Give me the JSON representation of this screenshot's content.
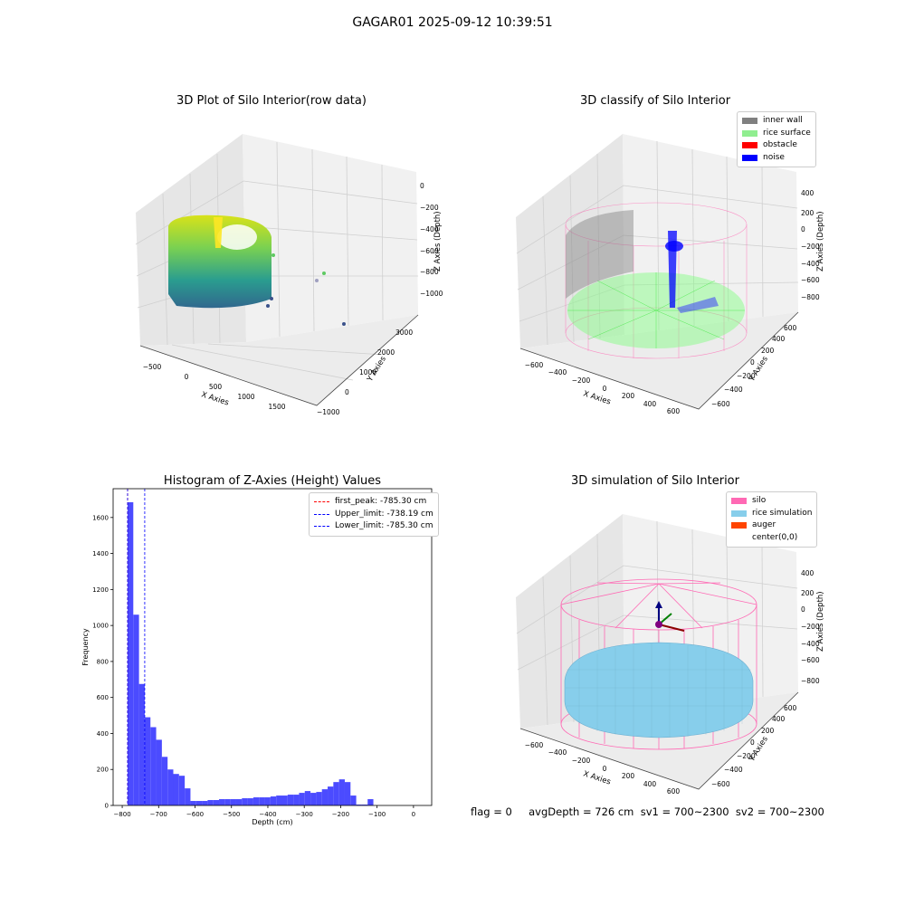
{
  "suptitle": "GAGAR01 2025-09-12 10:39:51",
  "colors": {
    "inner_wall": "#808080",
    "rice_surface": "#90ee90",
    "obstacle": "#ff0000",
    "noise": "#0000ff",
    "silo": "#ff69b4",
    "rice_simulation": "#87ceeb",
    "auger": "#ff4500",
    "hist_bar": "#4b4bff"
  },
  "chart_data": [
    {
      "type": "scatter3d",
      "title": "3D Plot of Silo Interior(row data)",
      "xlabel": "X Axies",
      "ylabel": "Y Axies",
      "zlabel": "Z Axies (Depth)",
      "xticks": [
        "−500",
        "0",
        "500",
        "1000",
        "1500"
      ],
      "yticks": [
        "−1000",
        "0",
        "1000",
        "2000",
        "3000"
      ],
      "zticks": [
        "0",
        "−200",
        "−400",
        "−600",
        "−800",
        "−1000"
      ],
      "colormap": "viridis"
    },
    {
      "type": "scatter3d",
      "title": "3D classify of Silo Interior",
      "xlabel": "X Axies",
      "ylabel": "Y Axies",
      "zlabel": "Z Axies (Depth)",
      "xticks": [
        "−600",
        "−400",
        "−200",
        "0",
        "200",
        "400",
        "600"
      ],
      "yticks": [
        "−600",
        "−400",
        "−200",
        "0",
        "200",
        "400",
        "600"
      ],
      "zticks": [
        "400",
        "200",
        "0",
        "−200",
        "−400",
        "−600",
        "−800"
      ],
      "legend_position": "top-right",
      "legend": [
        "inner wall",
        "rice surface",
        "obstacle",
        "noise"
      ]
    },
    {
      "type": "bar",
      "title": "Histogram of Z-Axies (Height) Values",
      "xlabel": "Depth (cm)",
      "ylabel": "Frequency",
      "xlim": [
        -825,
        50
      ],
      "ylim": [
        0,
        1760
      ],
      "xticks": [
        -800,
        -700,
        -600,
        -500,
        -400,
        -300,
        -200,
        -100,
        0
      ],
      "xtick_labels": [
        "−800",
        "−700",
        "−600",
        "−500",
        "−400",
        "−300",
        "−200",
        "−100",
        "0"
      ],
      "yticks": [
        0,
        200,
        400,
        600,
        800,
        1000,
        1200,
        1400,
        1600
      ],
      "bin_start": -785.3,
      "bin_width": 15.7,
      "values": [
        1685,
        1060,
        675,
        490,
        435,
        365,
        270,
        200,
        175,
        165,
        95,
        25,
        25,
        25,
        30,
        30,
        35,
        35,
        35,
        35,
        40,
        40,
        45,
        45,
        45,
        50,
        55,
        55,
        60,
        60,
        70,
        80,
        70,
        75,
        90,
        105,
        130,
        145,
        130,
        55,
        5,
        5,
        35
      ],
      "legend_position": "top-right",
      "vlines": [
        {
          "label": "first_peak: -785.30 cm",
          "x": -785.3,
          "color": "#ff0000"
        },
        {
          "label": "Upper_limit: -738.19 cm",
          "x": -738.19,
          "color": "#0000ff"
        },
        {
          "label": "Lower_limit: -785.30 cm",
          "x": -785.3,
          "color": "#0000ff"
        }
      ]
    },
    {
      "type": "scatter3d",
      "title": "3D simulation of Silo Interior",
      "xlabel": "X Axies",
      "ylabel": "Y Axies",
      "zlabel": "Z Axies (Depth)",
      "xticks": [
        "−600",
        "−400",
        "−200",
        "0",
        "200",
        "400",
        "600"
      ],
      "yticks": [
        "−600",
        "−400",
        "−200",
        "0",
        "200",
        "400",
        "600"
      ],
      "zticks": [
        "400",
        "200",
        "0",
        "−200",
        "−400",
        "−600",
        "−800"
      ],
      "legend_position": "top-right",
      "legend": [
        "silo",
        "rice simulation",
        "auger",
        "center(0,0)"
      ]
    }
  ],
  "footer": "flag = 0     avgDepth = 726 cm  sv1 = 700~2300  sv2 = 700~2300"
}
